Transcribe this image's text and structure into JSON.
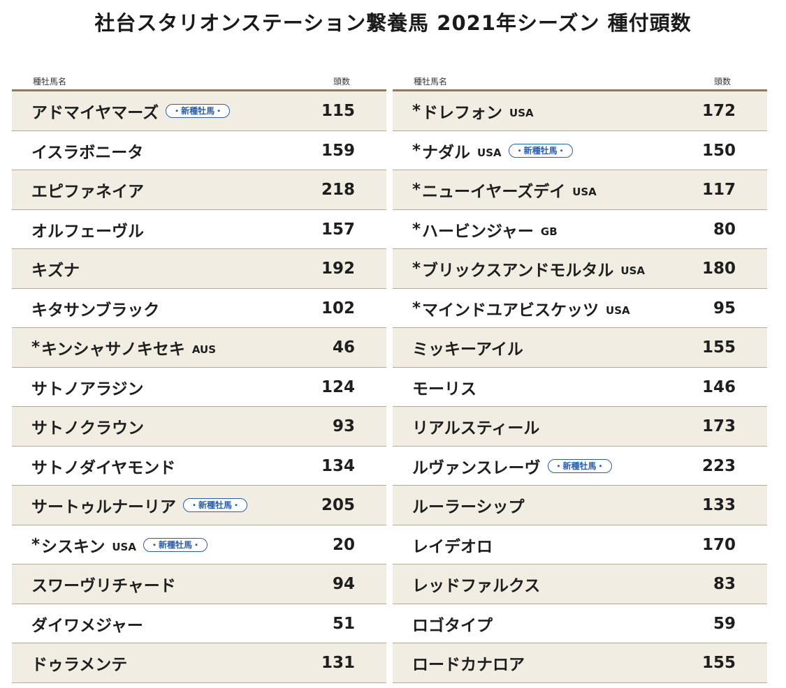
{
  "title": "社台スタリオンステーション繋養馬 2021年シーズン 種付頭数",
  "headers": {
    "name": "種牡馬名",
    "count": "頭数"
  },
  "badge_label": "・新種牡馬・",
  "left": [
    {
      "star": "",
      "name": "アドマイヤマーズ",
      "country": "",
      "badge": true,
      "count": "115"
    },
    {
      "star": "",
      "name": "イスラボニータ",
      "country": "",
      "badge": false,
      "count": "159"
    },
    {
      "star": "",
      "name": "エピファネイア",
      "country": "",
      "badge": false,
      "count": "218"
    },
    {
      "star": "",
      "name": "オルフェーヴル",
      "country": "",
      "badge": false,
      "count": "157"
    },
    {
      "star": "",
      "name": "キズナ",
      "country": "",
      "badge": false,
      "count": "192"
    },
    {
      "star": "",
      "name": "キタサンブラック",
      "country": "",
      "badge": false,
      "count": "102"
    },
    {
      "star": "*",
      "name": "キンシャサノキセキ",
      "country": "AUS",
      "badge": false,
      "count": "46"
    },
    {
      "star": "",
      "name": "サトノアラジン",
      "country": "",
      "badge": false,
      "count": "124"
    },
    {
      "star": "",
      "name": "サトノクラウン",
      "country": "",
      "badge": false,
      "count": "93"
    },
    {
      "star": "",
      "name": "サトノダイヤモンド",
      "country": "",
      "badge": false,
      "count": "134"
    },
    {
      "star": "",
      "name": "サートゥルナーリア",
      "country": "",
      "badge": true,
      "count": "205"
    },
    {
      "star": "*",
      "name": "シスキン",
      "country": "USA",
      "badge": true,
      "count": "20"
    },
    {
      "star": "",
      "name": "スワーヴリチャード",
      "country": "",
      "badge": false,
      "count": "94"
    },
    {
      "star": "",
      "name": "ダイワメジャー",
      "country": "",
      "badge": false,
      "count": "51"
    },
    {
      "star": "",
      "name": "ドゥラメンテ",
      "country": "",
      "badge": false,
      "count": "131"
    }
  ],
  "right": [
    {
      "star": "*",
      "name": "ドレフォン",
      "country": "USA",
      "badge": false,
      "count": "172"
    },
    {
      "star": "*",
      "name": "ナダル",
      "country": "USA",
      "badge": true,
      "count": "150"
    },
    {
      "star": "*",
      "name": "ニューイヤーズデイ",
      "country": "USA",
      "badge": false,
      "count": "117"
    },
    {
      "star": "*",
      "name": "ハービンジャー",
      "country": "GB",
      "badge": false,
      "count": "80"
    },
    {
      "star": "*",
      "name": "ブリックスアンドモルタル",
      "country": "USA",
      "badge": false,
      "count": "180"
    },
    {
      "star": "*",
      "name": "マインドユアビスケッツ",
      "country": "USA",
      "badge": false,
      "count": "95"
    },
    {
      "star": "",
      "name": "ミッキーアイル",
      "country": "",
      "badge": false,
      "count": "155"
    },
    {
      "star": "",
      "name": "モーリス",
      "country": "",
      "badge": false,
      "count": "146"
    },
    {
      "star": "",
      "name": "リアルスティール",
      "country": "",
      "badge": false,
      "count": "173"
    },
    {
      "star": "",
      "name": "ルヴァンスレーヴ",
      "country": "",
      "badge": true,
      "count": "223"
    },
    {
      "star": "",
      "name": "ルーラーシップ",
      "country": "",
      "badge": false,
      "count": "133"
    },
    {
      "star": "",
      "name": "レイデオロ",
      "country": "",
      "badge": false,
      "count": "170"
    },
    {
      "star": "",
      "name": "レッドファルクス",
      "country": "",
      "badge": false,
      "count": "83"
    },
    {
      "star": "",
      "name": "ロゴタイプ",
      "country": "",
      "badge": false,
      "count": "59"
    },
    {
      "star": "",
      "name": "ロードカナロア",
      "country": "",
      "badge": false,
      "count": "155"
    }
  ]
}
